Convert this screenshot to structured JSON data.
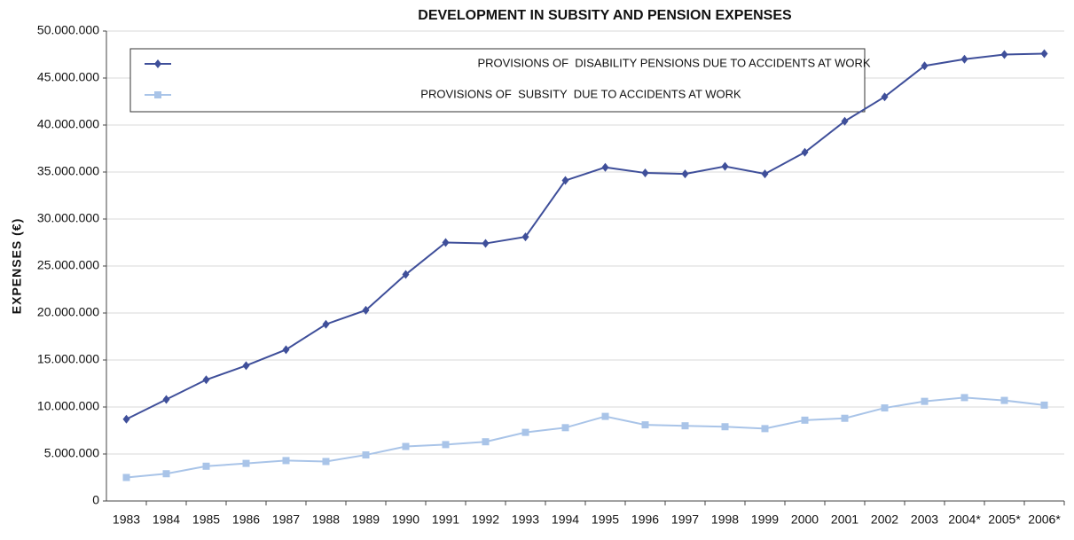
{
  "chart_data": {
    "type": "line",
    "title": "DEVELOPMENT IN SUBSITY AND PENSION EXPENSES",
    "y_label": "EXPENSES  (€)",
    "categories": [
      "1983",
      "1984",
      "1985",
      "1986",
      "1987",
      "1988",
      "1989",
      "1990",
      "1991",
      "1992",
      "1993",
      "1994",
      "1995",
      "1996",
      "1997",
      "1998",
      "1999",
      "2000",
      "2001",
      "2002",
      "2003",
      "2004*",
      "2005*",
      "2006*"
    ],
    "series": [
      {
        "name": "PROVISIONS OF  DISABILITY PENSIONS DUE TO ACCIDENTS AT WORK",
        "color": "#3f4f9a",
        "marker": "diamond",
        "values": [
          8700000,
          10800000,
          12900000,
          14400000,
          16100000,
          18800000,
          20300000,
          24100000,
          27500000,
          27400000,
          28100000,
          34100000,
          35500000,
          34900000,
          34800000,
          35600000,
          34800000,
          37100000,
          40400000,
          43000000,
          46300000,
          47000000,
          47500000,
          47600000
        ]
      },
      {
        "name": "PROVISIONS OF  SUBSITY  DUE TO ACCIDENTS AT WORK",
        "color": "#a9c4e8",
        "marker": "square",
        "values": [
          2500000,
          2900000,
          3700000,
          4000000,
          4300000,
          4200000,
          4900000,
          5800000,
          6000000,
          6300000,
          7300000,
          7800000,
          9000000,
          8100000,
          8000000,
          7900000,
          7700000,
          8600000,
          8800000,
          9900000,
          10600000,
          11000000,
          10700000,
          10200000
        ]
      }
    ],
    "ylim": [
      0,
      50000000
    ],
    "yticks": [
      0,
      {
        "value": 5000000,
        "label": "5.000.000"
      },
      {
        "value": 10000000,
        "label": "10.000.000"
      },
      {
        "value": 15000000,
        "label": "15.000.000"
      },
      {
        "value": 20000000,
        "label": "20.000.000"
      },
      {
        "value": 25000000,
        "label": "25.000.000"
      },
      {
        "value": 30000000,
        "label": "30.000.000"
      },
      {
        "value": 35000000,
        "label": "35.000.000"
      },
      {
        "value": 40000000,
        "label": "40.000.000"
      },
      {
        "value": 45000000,
        "label": "45.000.000"
      },
      {
        "value": 50000000,
        "label": "50.000.000"
      }
    ],
    "grid": true
  }
}
